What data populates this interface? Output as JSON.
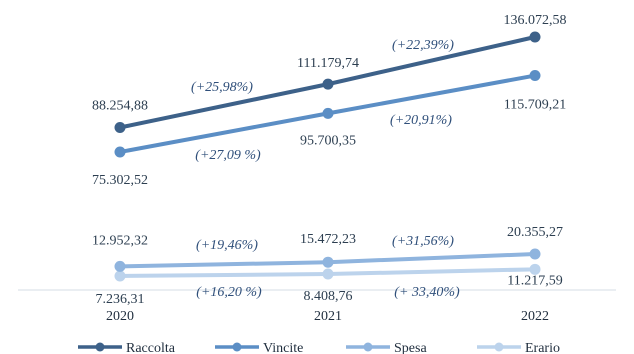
{
  "chart_data": {
    "type": "line",
    "title": "",
    "xlabel": "",
    "ylabel": "",
    "x": [
      "2020",
      "2021",
      "2022"
    ],
    "series": [
      {
        "name": "Raccolta",
        "color": "#3d6189",
        "values": [
          88254.88,
          111179.74,
          136072.58
        ],
        "labels": [
          "88.254,88",
          "111.179,74",
          "136.072,58"
        ],
        "changes": [
          "(+25,98%)",
          "(+22,39%)"
        ]
      },
      {
        "name": "Vincite",
        "color": "#5b8ec5",
        "values": [
          75302.52,
          95700.35,
          115709.21
        ],
        "labels": [
          "75.302,52",
          "95.700,35",
          "115.709,21"
        ],
        "changes": [
          "(+27,09 %)",
          "(+20,91%)"
        ]
      },
      {
        "name": "Spesa",
        "color": "#8fb4de",
        "values": [
          12952.32,
          15472.23,
          20355.27
        ],
        "labels": [
          "12.952,32",
          "15.472,23",
          "20.355,27"
        ],
        "changes": [
          "(+19,46%)",
          "(+31,56%)"
        ]
      },
      {
        "name": "Erario",
        "color": "#bcd3ec",
        "values": [
          7236.31,
          8408.76,
          11217.59
        ],
        "labels": [
          "7.236,31",
          "8.408,76",
          "11.217,59"
        ],
        "changes": [
          "(+16,20 %)",
          "(+ 33,40%)"
        ]
      }
    ],
    "legend": "bottom",
    "grid": false
  }
}
